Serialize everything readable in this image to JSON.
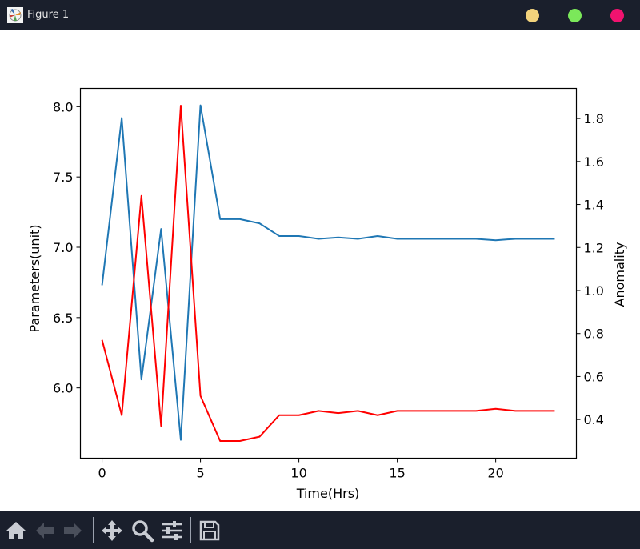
{
  "window": {
    "title": "Figure 1"
  },
  "icons": {
    "app": "matplotlib-figure-icon",
    "minimize": "minimize-button",
    "maximize": "maximize-button",
    "close": "close-button"
  },
  "toolbar": {
    "items": [
      "home-icon",
      "back-arrow-icon",
      "forward-arrow-icon",
      "pan-move-icon",
      "zoom-magnifier-icon",
      "configure-subplots-icon",
      "save-floppy-icon"
    ]
  },
  "chart_data": {
    "type": "line",
    "title": "",
    "xlabel": "Time(Hrs)",
    "ylabel": "Parameters(unit)",
    "y2label": "Anomality",
    "xlim": [
      -1.1,
      24.1
    ],
    "ylim": [
      5.5,
      8.13
    ],
    "y2lim": [
      0.22,
      1.94
    ],
    "xticks": [
      0,
      5,
      10,
      15,
      20
    ],
    "yticks": [
      6.0,
      6.5,
      7.0,
      7.5,
      8.0
    ],
    "y2ticks": [
      0.4,
      0.6,
      0.8,
      1.0,
      1.2,
      1.4,
      1.6,
      1.8
    ],
    "x": [
      0,
      1,
      2,
      3,
      4,
      5,
      6,
      7,
      8,
      9,
      10,
      11,
      12,
      13,
      14,
      15,
      16,
      17,
      18,
      19,
      20,
      21,
      22,
      23
    ],
    "series": [
      {
        "axis": "left",
        "color": "#1f77b4",
        "values": [
          6.73,
          7.92,
          6.06,
          7.13,
          5.63,
          8.01,
          7.2,
          7.2,
          7.17,
          7.08,
          7.08,
          7.06,
          7.07,
          7.06,
          7.08,
          7.06,
          7.06,
          7.06,
          7.06,
          7.06,
          7.05,
          7.06,
          7.06,
          7.06
        ]
      },
      {
        "axis": "right",
        "color": "#ff0000",
        "values": [
          0.77,
          0.42,
          1.44,
          0.37,
          1.86,
          0.51,
          0.3,
          0.3,
          0.32,
          0.42,
          0.42,
          0.44,
          0.43,
          0.44,
          0.42,
          0.44,
          0.44,
          0.44,
          0.44,
          0.44,
          0.45,
          0.44,
          0.44,
          0.44
        ]
      }
    ],
    "grid": false,
    "legend": "none"
  }
}
